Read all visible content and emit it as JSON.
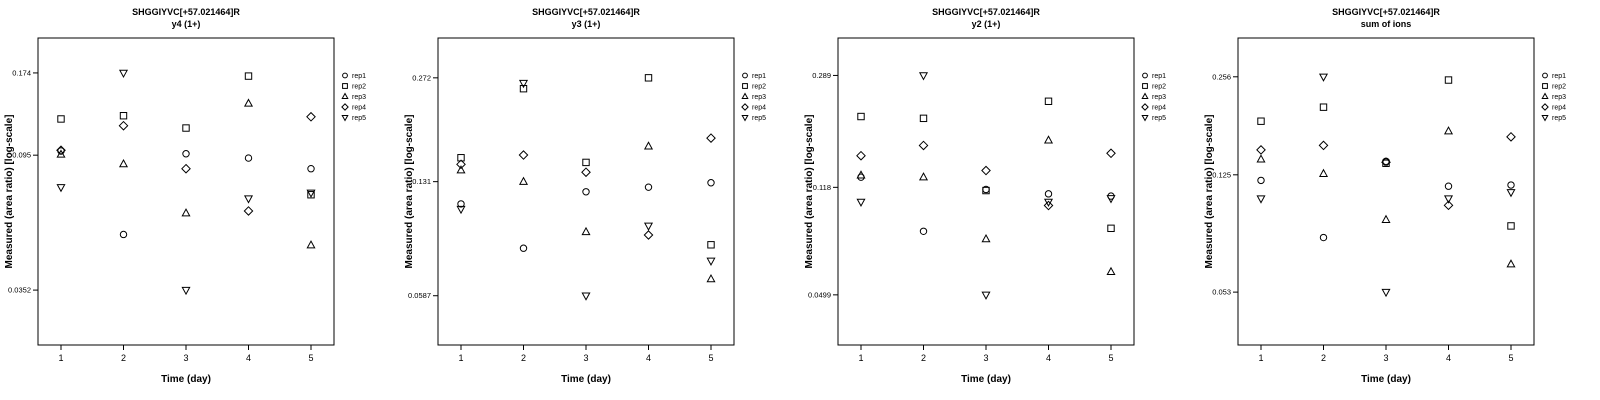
{
  "page": {
    "background": "#ffffff",
    "foreground": "#000000"
  },
  "legend": {
    "items": [
      {
        "label": "rep1",
        "marker": "circle"
      },
      {
        "label": "rep2",
        "marker": "square"
      },
      {
        "label": "rep3",
        "marker": "triangle-up"
      },
      {
        "label": "rep4",
        "marker": "diamond"
      },
      {
        "label": "rep5",
        "marker": "triangle-down"
      }
    ],
    "position": "right-top"
  },
  "chart_data": [
    {
      "type": "scatter",
      "title": "SHGGIYVC[+57.021464]R",
      "subtitle": "y4 (1+)",
      "xlabel": "Time (day)",
      "ylabel": "Measured (area ratio) [log-scale]",
      "x": [
        1,
        2,
        3,
        4,
        5
      ],
      "xticks": [
        1,
        2,
        3,
        4,
        5
      ],
      "yticks": [
        0.174,
        0.095,
        0.0352
      ],
      "ylim": [
        0.0235,
        0.225
      ],
      "log_scale": true,
      "grid": false,
      "series": [
        {
          "name": "rep1",
          "marker": "circle",
          "values": [
            0.098,
            0.053,
            0.096,
            0.093,
            0.086
          ]
        },
        {
          "name": "rep2",
          "marker": "square",
          "values": [
            0.124,
            0.127,
            0.116,
            0.17,
            0.071
          ]
        },
        {
          "name": "rep3",
          "marker": "triangle-up",
          "values": [
            0.0955,
            0.089,
            0.062,
            0.139,
            0.049
          ]
        },
        {
          "name": "rep4",
          "marker": "diamond",
          "values": [
            0.0985,
            0.118,
            0.086,
            0.063,
            0.126
          ]
        },
        {
          "name": "rep5",
          "marker": "triangle-down",
          "values": [
            0.075,
            0.174,
            0.0352,
            0.069,
            0.072
          ]
        }
      ]
    },
    {
      "type": "scatter",
      "title": "SHGGIYVC[+57.021464]R",
      "subtitle": "y3 (1+)",
      "xlabel": "Time (day)",
      "ylabel": "Measured (area ratio) [log-scale]",
      "x": [
        1,
        2,
        3,
        4,
        5
      ],
      "xticks": [
        1,
        2,
        3,
        4,
        5
      ],
      "yticks": [
        0.272,
        0.131,
        0.0587
      ],
      "ylim": [
        0.0415,
        0.36
      ],
      "log_scale": true,
      "grid": false,
      "series": [
        {
          "name": "rep1",
          "marker": "circle",
          "values": [
            0.112,
            0.082,
            0.122,
            0.126,
            0.13
          ]
        },
        {
          "name": "rep2",
          "marker": "square",
          "values": [
            0.155,
            0.252,
            0.15,
            0.272,
            0.084
          ]
        },
        {
          "name": "rep3",
          "marker": "triangle-up",
          "values": [
            0.142,
            0.131,
            0.092,
            0.168,
            0.066
          ]
        },
        {
          "name": "rep4",
          "marker": "diamond",
          "values": [
            0.148,
            0.158,
            0.14,
            0.09,
            0.178
          ]
        },
        {
          "name": "rep5",
          "marker": "triangle-down",
          "values": [
            0.108,
            0.262,
            0.0587,
            0.096,
            0.075
          ]
        }
      ]
    },
    {
      "type": "scatter",
      "title": "SHGGIYVC[+57.021464]R",
      "subtitle": "y2 (1+)",
      "xlabel": "Time (day)",
      "ylabel": "Measured (area ratio) [log-scale]",
      "x": [
        1,
        2,
        3,
        4,
        5
      ],
      "xticks": [
        1,
        2,
        3,
        4,
        5
      ],
      "yticks": [
        0.289,
        0.118,
        0.0499
      ],
      "ylim": [
        0.0334,
        0.39
      ],
      "log_scale": true,
      "grid": false,
      "series": [
        {
          "name": "rep1",
          "marker": "circle",
          "values": [
            0.128,
            0.083,
            0.116,
            0.112,
            0.11
          ]
        },
        {
          "name": "rep2",
          "marker": "square",
          "values": [
            0.208,
            0.205,
            0.115,
            0.235,
            0.085
          ]
        },
        {
          "name": "rep3",
          "marker": "triangle-up",
          "values": [
            0.13,
            0.128,
            0.078,
            0.172,
            0.06
          ]
        },
        {
          "name": "rep4",
          "marker": "diamond",
          "values": [
            0.152,
            0.165,
            0.135,
            0.102,
            0.155
          ]
        },
        {
          "name": "rep5",
          "marker": "triangle-down",
          "values": [
            0.105,
            0.289,
            0.0499,
            0.105,
            0.108
          ]
        }
      ]
    },
    {
      "type": "scatter",
      "title": "SHGGIYVC[+57.021464]R",
      "subtitle": "sum of ions",
      "xlabel": "Time (day)",
      "ylabel": "Measured (area ratio) [log-scale]",
      "x": [
        1,
        2,
        3,
        4,
        5
      ],
      "xticks": [
        1,
        2,
        3,
        4,
        5
      ],
      "yticks": [
        0.256,
        0.125,
        0.053
      ],
      "ylim": [
        0.036,
        0.34
      ],
      "log_scale": true,
      "grid": false,
      "series": [
        {
          "name": "rep1",
          "marker": "circle",
          "values": [
            0.12,
            0.079,
            0.138,
            0.115,
            0.116
          ]
        },
        {
          "name": "rep2",
          "marker": "square",
          "values": [
            0.185,
            0.205,
            0.136,
            0.25,
            0.086
          ]
        },
        {
          "name": "rep3",
          "marker": "triangle-up",
          "values": [
            0.14,
            0.126,
            0.09,
            0.172,
            0.065
          ]
        },
        {
          "name": "rep4",
          "marker": "diamond",
          "values": [
            0.15,
            0.155,
            0.137,
            0.1,
            0.165
          ]
        },
        {
          "name": "rep5",
          "marker": "triangle-down",
          "values": [
            0.105,
            0.256,
            0.053,
            0.105,
            0.11
          ]
        }
      ]
    }
  ]
}
